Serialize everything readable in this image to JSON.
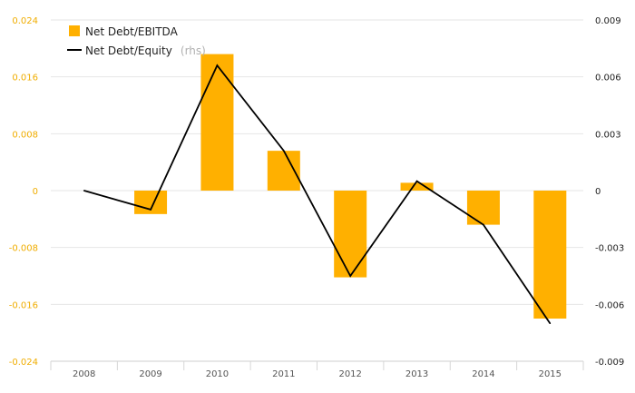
{
  "chart_data": {
    "type": "bar",
    "categories": [
      "2008",
      "2009",
      "2010",
      "2011",
      "2012",
      "2013",
      "2014",
      "2015"
    ],
    "series": [
      {
        "name": "Net Debt/EBITDA",
        "kind": "bar",
        "axis": "left",
        "color": "#ffb000",
        "values": [
          0,
          -0.0033,
          0.0192,
          0.0056,
          -0.0122,
          0.0011,
          -0.0048,
          -0.018
        ]
      },
      {
        "name": "Net Debt/Equity",
        "axis_suffix": "(rhs)",
        "kind": "line",
        "axis": "right",
        "color": "#000000",
        "values": [
          0.0,
          -0.001,
          0.0066,
          0.0021,
          -0.0045,
          0.0005,
          -0.0018,
          -0.007
        ]
      }
    ],
    "left_axis": {
      "ylim": [
        -0.024,
        0.024
      ],
      "ticks": [
        0.024,
        0.016,
        0.008,
        0,
        -0.008,
        -0.016,
        -0.024
      ],
      "tick_labels": [
        "0.024",
        "0.016",
        "0.008",
        "0",
        "-0.008",
        "-0.016",
        "-0.024"
      ],
      "color": "#f0ad00"
    },
    "right_axis": {
      "ylim": [
        -0.009,
        0.009
      ],
      "ticks": [
        0.009,
        0.006,
        0.003,
        0,
        -0.003,
        -0.006,
        -0.009
      ],
      "tick_labels": [
        "0.009",
        "0.006",
        "0.003",
        "0",
        "-0.003",
        "-0.006",
        "-0.009"
      ],
      "color": "#222222"
    },
    "grid": true,
    "legend": {
      "placement": "top-left"
    }
  }
}
